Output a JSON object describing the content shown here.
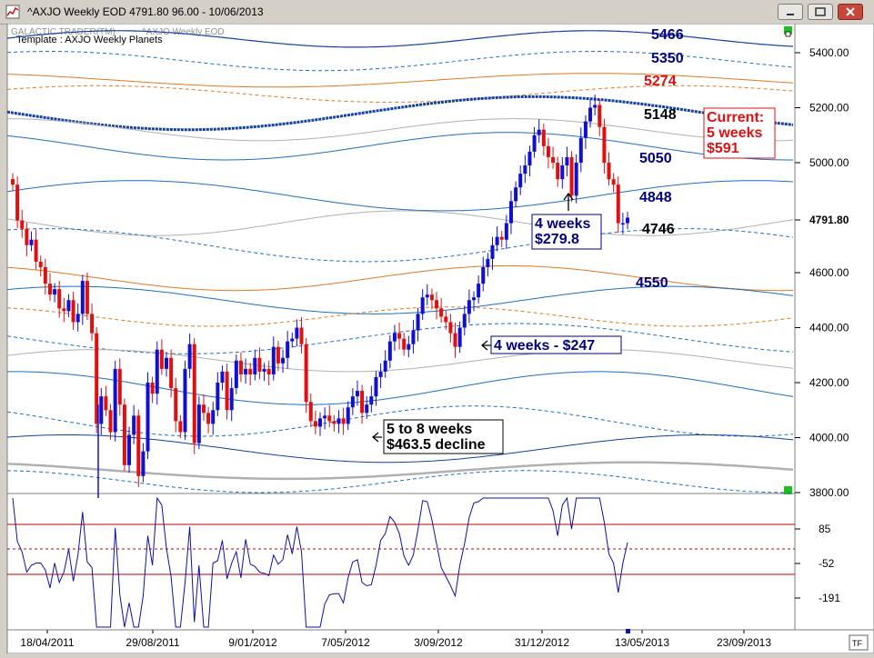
{
  "window": {
    "title": "^AXJO Weekly EOD  4791.80    96.00 - 10/06/2013"
  },
  "header": {
    "vendor": "GALACTIC TRADER(TM)",
    "symbol_caption": "^AXJO Weekly EOD",
    "template": "Template : AXJO Weekly Planets"
  },
  "corner_label": "TF",
  "colors": {
    "up_bar": "#1010d0",
    "down_bar": "#e01010",
    "bg": "#ffffff",
    "blue_line": "#1a6fc4",
    "orange_line": "#e07820",
    "gray_line": "#b0b0b0",
    "navy_line": "#1040a0",
    "oscillator": "#1010a0",
    "osc_band": "#c00000"
  },
  "chart_data": {
    "type": "candlestick",
    "price_axis": {
      "ticks": [
        "5400.00",
        "5200.00",
        "5000.00",
        "4791.80",
        "4600.00",
        "4400.00",
        "4200.00",
        "4000.00",
        "3800.00"
      ],
      "range": [
        3800,
        5450
      ],
      "current": "4791.80"
    },
    "osc_axis": {
      "ticks": [
        "85",
        "-52",
        "-191"
      ]
    },
    "date_ticks": [
      "18/04/2011",
      "29/08/2011",
      "9/01/2012",
      "7/05/2012",
      "3/09/2012",
      "31/12/2012",
      "13/05/2013",
      "23/09/2013"
    ],
    "level_labels": [
      {
        "text": "5466",
        "color": "#000080"
      },
      {
        "text": "5350",
        "color": "#000080"
      },
      {
        "text": "5274",
        "color": "#e01010"
      },
      {
        "text": "5148",
        "color": "#000000"
      },
      {
        "text": "5050",
        "color": "#000080"
      },
      {
        "text": "4848",
        "color": "#000080"
      },
      {
        "text": "4746",
        "color": "#000000"
      },
      {
        "text": "4550",
        "color": "#000080"
      }
    ],
    "annotations": [
      {
        "lines": [
          "Current:",
          "5 weeks",
          "$591"
        ],
        "color": "#e01010"
      },
      {
        "lines": [
          "4 weeks",
          "$279.8"
        ],
        "color": "#000080"
      },
      {
        "lines": [
          "4 weeks - $247"
        ],
        "color": "#000080"
      },
      {
        "lines": [
          "5 to 8 weeks",
          "$463.5 decline"
        ],
        "color": "#000000"
      }
    ],
    "closes": [
      4920,
      4790,
      4760,
      4700,
      4720,
      4640,
      4620,
      4560,
      4520,
      4540,
      4470,
      4460,
      4500,
      4420,
      4450,
      4570,
      4450,
      4380,
      4050,
      4150,
      4100,
      4020,
      4250,
      4120,
      3900,
      4010,
      4080,
      3860,
      3950,
      4200,
      4160,
      4320,
      4250,
      4290,
      4180,
      4060,
      4020,
      4250,
      4340,
      3980,
      4120,
      4090,
      4050,
      4100,
      4200,
      4240,
      4100,
      4180,
      4280,
      4230,
      4250,
      4230,
      4290,
      4240,
      4250,
      4230,
      4330,
      4270,
      4290,
      4350,
      4360,
      4400,
      4340,
      4130,
      4060,
      4040,
      4070,
      4080,
      4060,
      4050,
      4070,
      4050,
      4110,
      4150,
      4170,
      4090,
      4120,
      4150,
      4220,
      4240,
      4280,
      4350,
      4380,
      4360,
      4320,
      4340,
      4390,
      4450,
      4510,
      4520,
      4500,
      4470,
      4440,
      4420,
      4380,
      4330,
      4400,
      4450,
      4500,
      4510,
      4560,
      4620,
      4650,
      4700,
      4730,
      4720,
      4780,
      4860,
      4910,
      4960,
      4990,
      5040,
      5100,
      5120,
      5060,
      5020,
      5000,
      4940,
      4990,
      5020,
      4880,
      5000,
      5090,
      5150,
      5200,
      5210,
      5130,
      5000,
      4940,
      4920,
      4780,
      4780,
      4800
    ]
  }
}
